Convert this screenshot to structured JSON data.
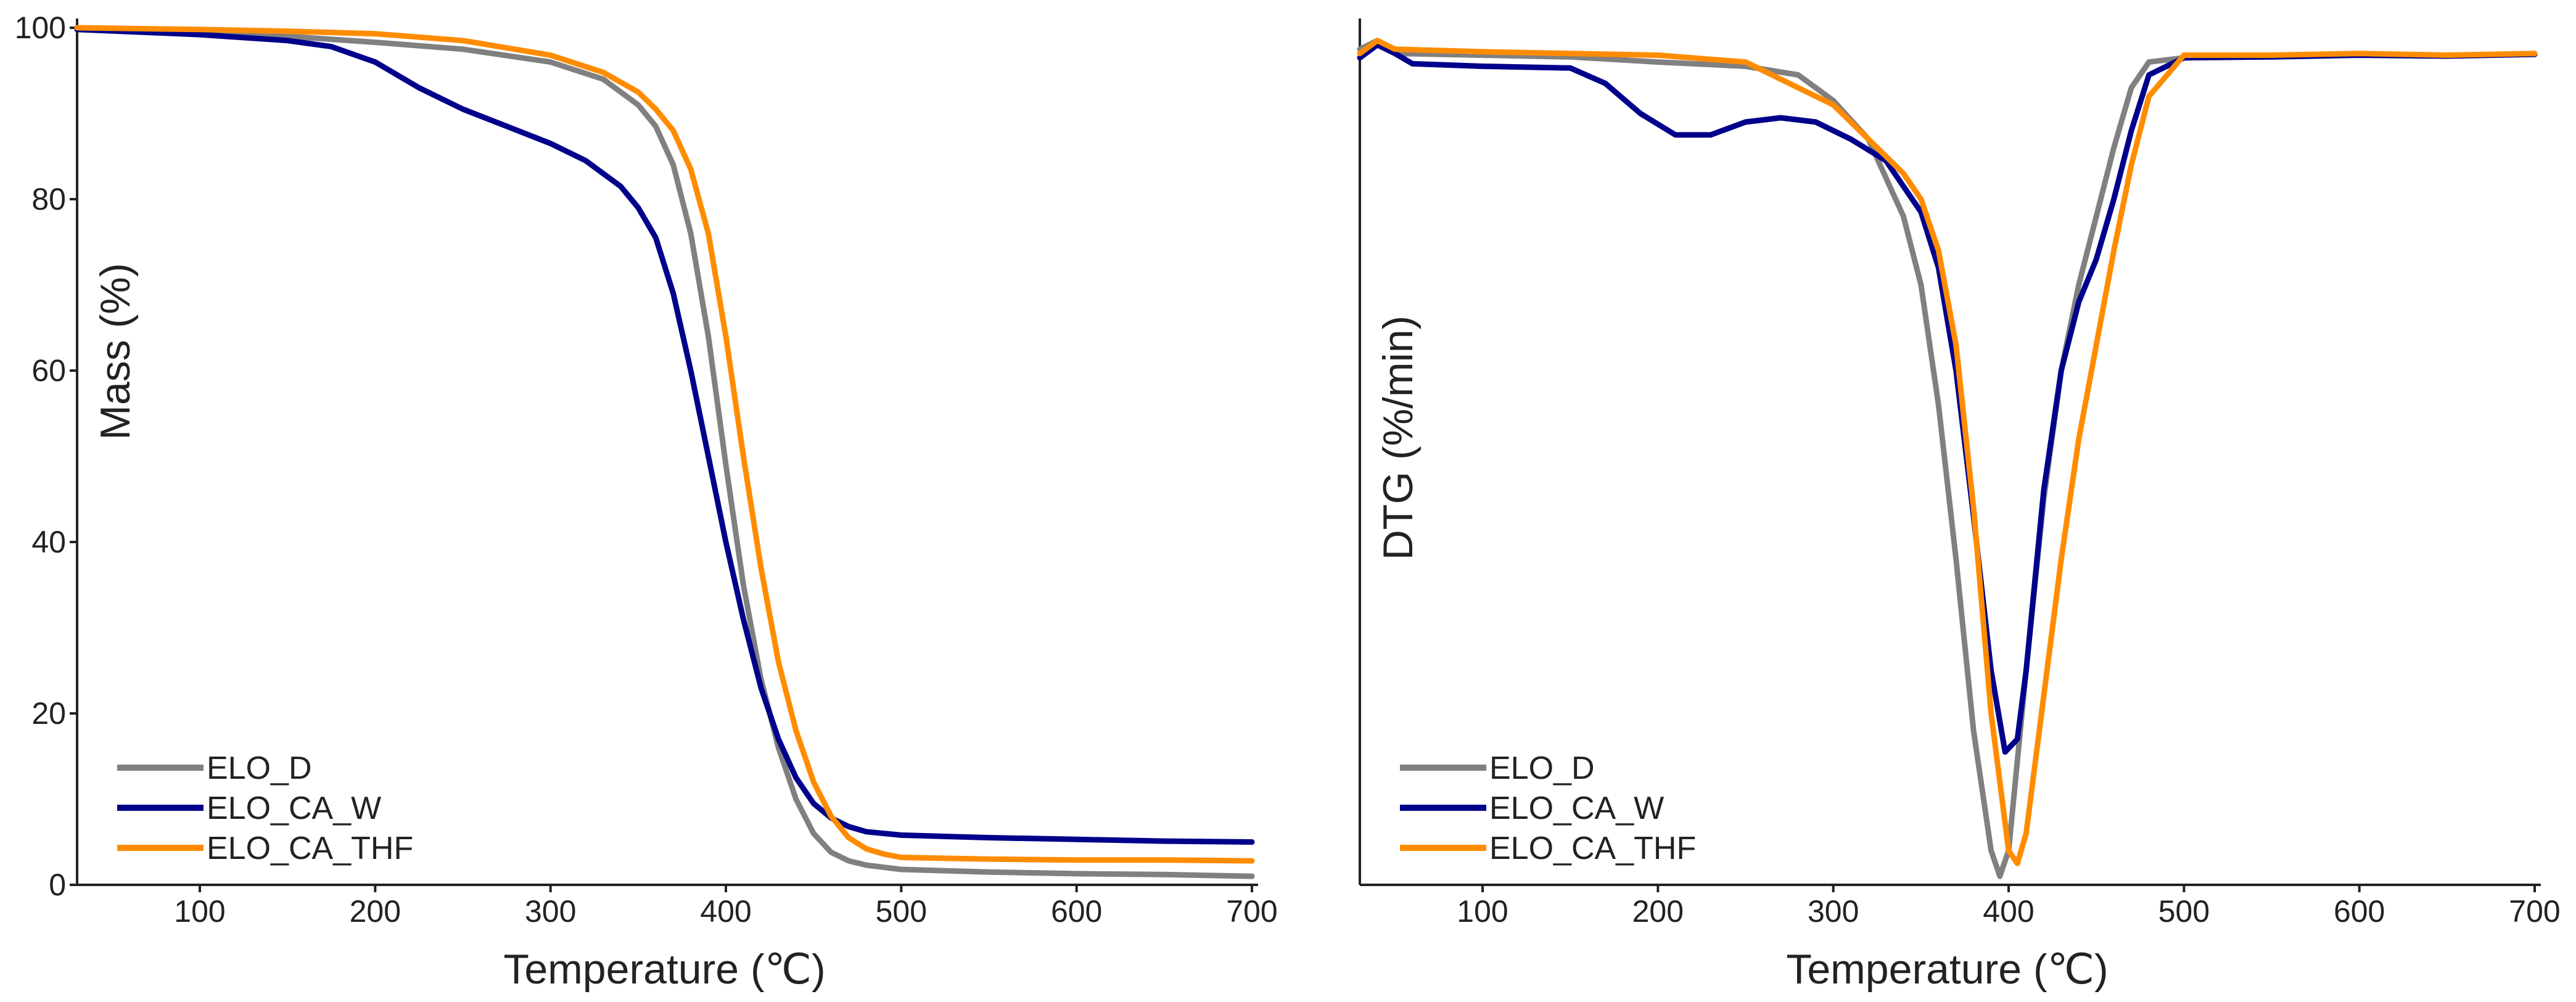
{
  "chart_data": [
    {
      "type": "line",
      "title": "",
      "xlabel": "Temperature (℃)",
      "ylabel": "Mass (%)",
      "xlim": [
        30,
        700
      ],
      "ylim": [
        0,
        100
      ],
      "xticks": [
        100,
        200,
        300,
        400,
        500,
        600,
        700
      ],
      "yticks": [
        0,
        20,
        40,
        60,
        80,
        100
      ],
      "show_yticks": true,
      "legend_position": "bottom-left",
      "series": [
        {
          "name": "ELO_D",
          "color": "#808080",
          "x": [
            30,
            100,
            150,
            200,
            250,
            300,
            330,
            350,
            360,
            370,
            380,
            390,
            400,
            410,
            420,
            430,
            440,
            450,
            460,
            470,
            480,
            500,
            550,
            600,
            650,
            700
          ],
          "y": [
            99.8,
            99.5,
            99.0,
            98.3,
            97.5,
            96.0,
            94.0,
            91.0,
            88.5,
            84.0,
            76.0,
            64.0,
            49.0,
            35.0,
            24.0,
            16.0,
            10.0,
            6.0,
            3.8,
            2.8,
            2.3,
            1.8,
            1.5,
            1.3,
            1.2,
            1.0
          ]
        },
        {
          "name": "ELO_CA_W",
          "color": "#00008B",
          "x": [
            30,
            100,
            150,
            175,
            200,
            225,
            250,
            275,
            300,
            320,
            340,
            350,
            360,
            370,
            380,
            390,
            400,
            410,
            420,
            430,
            440,
            450,
            460,
            470,
            480,
            500,
            550,
            600,
            650,
            700
          ],
          "y": [
            99.8,
            99.2,
            98.5,
            97.8,
            96.0,
            93.0,
            90.5,
            88.5,
            86.5,
            84.5,
            81.5,
            79.0,
            75.5,
            69.0,
            60.0,
            50.0,
            40.0,
            31.0,
            23.0,
            17.0,
            12.5,
            9.5,
            7.8,
            6.8,
            6.2,
            5.8,
            5.5,
            5.3,
            5.1,
            5.0
          ]
        },
        {
          "name": "ELO_CA_THF",
          "color": "#FF8C00",
          "x": [
            30,
            100,
            150,
            200,
            250,
            300,
            330,
            350,
            360,
            370,
            380,
            390,
            400,
            410,
            420,
            430,
            440,
            450,
            460,
            470,
            480,
            490,
            500,
            550,
            600,
            650,
            700
          ],
          "y": [
            100,
            99.8,
            99.6,
            99.3,
            98.5,
            96.8,
            94.8,
            92.5,
            90.5,
            88.0,
            83.5,
            76.0,
            64.0,
            50.0,
            37.0,
            26.0,
            18.0,
            12.0,
            8.0,
            5.5,
            4.2,
            3.6,
            3.2,
            3.0,
            2.9,
            2.9,
            2.8
          ]
        }
      ]
    },
    {
      "type": "line",
      "title": "",
      "xlabel": "Temperature (℃)",
      "ylabel": "DTG (%/min)",
      "xlim": [
        30,
        700
      ],
      "ylim": [
        0,
        100
      ],
      "xticks": [
        100,
        200,
        300,
        400,
        500,
        600,
        700
      ],
      "yticks": [],
      "show_yticks": false,
      "legend_position": "bottom-left",
      "series": [
        {
          "name": "ELO_D",
          "color": "#808080",
          "x": [
            30,
            40,
            50,
            100,
            150,
            200,
            250,
            280,
            300,
            320,
            340,
            350,
            360,
            370,
            380,
            390,
            395,
            400,
            410,
            420,
            430,
            440,
            450,
            460,
            470,
            480,
            500,
            550,
            600,
            650,
            700
          ],
          "y": [
            97.5,
            98.5,
            97.0,
            96.8,
            96.6,
            96.0,
            95.5,
            94.5,
            91.5,
            87.0,
            78.0,
            70.0,
            56.0,
            38.0,
            18.0,
            4.0,
            1.0,
            4.0,
            25.0,
            45.0,
            60.0,
            70.0,
            78.0,
            86.0,
            93.0,
            96.0,
            96.5,
            96.8,
            96.9,
            96.8,
            96.9
          ]
        },
        {
          "name": "ELO_CA_W",
          "color": "#00008B",
          "x": [
            30,
            40,
            50,
            60,
            100,
            150,
            170,
            190,
            210,
            230,
            250,
            270,
            290,
            310,
            330,
            350,
            360,
            370,
            380,
            390,
            398,
            405,
            410,
            420,
            430,
            440,
            450,
            460,
            470,
            480,
            500,
            550,
            600,
            650,
            700
          ],
          "y": [
            96.5,
            98.0,
            97.0,
            95.8,
            95.5,
            95.3,
            93.5,
            90.0,
            87.5,
            87.5,
            89.0,
            89.5,
            89.0,
            87.0,
            84.5,
            78.5,
            72.0,
            60.0,
            43.0,
            25.0,
            15.5,
            17.0,
            25.0,
            46.0,
            60.0,
            68.0,
            73.0,
            80.0,
            88.0,
            94.5,
            96.5,
            96.6,
            96.8,
            96.7,
            96.9
          ]
        },
        {
          "name": "ELO_CA_THF",
          "color": "#FF8C00",
          "x": [
            30,
            40,
            50,
            100,
            150,
            200,
            250,
            300,
            320,
            340,
            350,
            360,
            370,
            380,
            390,
            400,
            405,
            410,
            420,
            430,
            440,
            450,
            460,
            470,
            480,
            500,
            550,
            600,
            650,
            700
          ],
          "y": [
            97.0,
            98.5,
            97.5,
            97.2,
            97.0,
            96.8,
            96.0,
            91.0,
            87.0,
            83.0,
            80.0,
            74.0,
            63.0,
            44.0,
            20.0,
            4.0,
            2.5,
            6.0,
            22.0,
            38.0,
            52.0,
            63.0,
            74.0,
            84.0,
            92.0,
            96.8,
            96.8,
            97.0,
            96.8,
            97.0
          ]
        }
      ]
    }
  ]
}
